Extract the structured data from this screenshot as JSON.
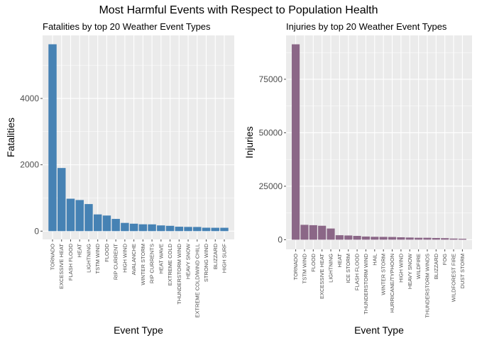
{
  "title": "Most Harmful Events with Respect to Population Health",
  "colors": {
    "panel_bg": "#ebebeb",
    "grid": "#ffffff",
    "fatalities_bar": "#4682b4",
    "injuries_bar": "#8b6787",
    "tick": "#4d4d4d"
  },
  "chart_data": [
    {
      "type": "bar",
      "title": "Fatalities by top 20 Weather Event Types",
      "xlabel": "Event Type",
      "ylabel": "Fatalities",
      "ylim": [
        -250,
        5900
      ],
      "yticks": [
        0,
        2000,
        4000
      ],
      "grid": true,
      "categories": [
        "TORNADO",
        "EXCESSIVE HEAT",
        "FLASH FLOOD",
        "HEAT",
        "LIGHTNING",
        "TSTM WIND",
        "FLOOD",
        "RIP CURRENT",
        "HIGH WIND",
        "AVALANCHE",
        "WINTER STORM",
        "RIP CURRENTS",
        "HEAT WAVE",
        "EXTREME COLD",
        "THUNDERSTORM WIND",
        "HEAVY SNOW",
        "EXTREME COLD/WIND CHILL",
        "STRONG WIND",
        "BLIZZARD",
        "HIGH SURF"
      ],
      "values": [
        5633,
        1903,
        978,
        937,
        816,
        504,
        470,
        368,
        248,
        224,
        206,
        204,
        172,
        160,
        133,
        127,
        125,
        103,
        101,
        101
      ]
    },
    {
      "type": "bar",
      "title": "Injuries by top 20 Weather Event Types",
      "xlabel": "Event Type",
      "ylabel": "Injuries",
      "ylim": [
        -4500,
        95500
      ],
      "yticks": [
        0,
        25000,
        50000,
        75000
      ],
      "grid": true,
      "categories": [
        "TORNADO",
        "TSTM WIND",
        "FLOOD",
        "EXCESSIVE HEAT",
        "LIGHTNING",
        "HEAT",
        "ICE STORM",
        "FLASH FLOOD",
        "THUNDERSTORM WIND",
        "HAIL",
        "WINTER STORM",
        "HURRICANE/TYPHOON",
        "HIGH WIND",
        "HEAVY SNOW",
        "WILDFIRE",
        "THUNDERSTORM WINDS",
        "BLIZZARD",
        "FOG",
        "WILDFOREST FIRE",
        "DUST STORM"
      ],
      "values": [
        91346,
        6957,
        6789,
        6525,
        5230,
        2100,
        1975,
        1777,
        1488,
        1361,
        1321,
        1275,
        1137,
        1021,
        911,
        908,
        805,
        734,
        545,
        440
      ]
    }
  ]
}
